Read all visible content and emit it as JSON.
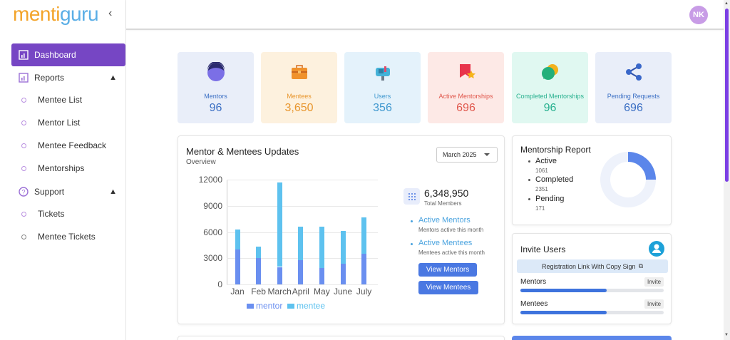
{
  "app": {
    "logo_part1": "menti",
    "logo_part2": "guru",
    "user_initials": "NK"
  },
  "sidebar": {
    "collapse_icon": "chevron-left-icon",
    "items": [
      {
        "label": "Dashboard",
        "icon": "dashboard-icon",
        "active": true
      },
      {
        "label": "Reports",
        "icon": "reports-icon"
      },
      {
        "label": "Mentee List"
      },
      {
        "label": "Mentor List"
      },
      {
        "label": "Mentee Feedback"
      },
      {
        "label": "Mentorships"
      },
      {
        "label": "Support",
        "icon": "help-icon"
      },
      {
        "label": "Tickets"
      },
      {
        "label": "Mentee Tickets"
      }
    ]
  },
  "stats": [
    {
      "label": "Mentors",
      "value": "96",
      "color": "#3b6fc4",
      "bg": "#e9eef9"
    },
    {
      "label": "Mentees",
      "value": "3,650",
      "color": "#e8962d",
      "bg": "#fdf1de"
    },
    {
      "label": "Users",
      "value": "356",
      "color": "#3f98cf",
      "bg": "#e4f2fb"
    },
    {
      "label": "Active Mentorships",
      "value": "696",
      "color": "#e0574c",
      "bg": "#fde9e6"
    },
    {
      "label": "Completed Mentorships",
      "value": "96",
      "color": "#26b08e",
      "bg": "#e0f8f1"
    },
    {
      "label": "Pending Requests",
      "value": "696",
      "color": "#3b6fc4",
      "bg": "#e9eef9"
    }
  ],
  "updates": {
    "title": "Mentor & Mentees Updates",
    "subtitle": "Overview",
    "month_select": "March 2025",
    "total_members": "6,348,950",
    "total_members_label": "Total Members",
    "active_mentors": "Active Mentors",
    "active_mentors_desc": "Mentors active this month",
    "active_mentees": "Active Mentees",
    "active_mentees_desc": "Mentees active this month",
    "view_mentors": "View Mentors",
    "view_mentees": "View Mentees"
  },
  "chart_data": {
    "type": "bar",
    "stacked": true,
    "categories": [
      "Jan",
      "Feb",
      "March",
      "April",
      "May",
      "June",
      "July"
    ],
    "series": [
      {
        "name": "mentor",
        "color": "#6a8ff0",
        "values": [
          4000,
          3000,
          2000,
          2800,
          1900,
          2400,
          3500
        ]
      },
      {
        "name": "mentee",
        "color": "#5ec2ef",
        "values": [
          2300,
          1300,
          9700,
          3800,
          4700,
          3700,
          4200
        ]
      }
    ],
    "yticks": [
      "12000",
      "9000",
      "6000",
      "3000",
      "0"
    ],
    "ylim": [
      0,
      12000
    ],
    "legend": "bottom"
  },
  "report": {
    "title": "Mentorship Report",
    "items": [
      {
        "label": "Active",
        "value": "1061"
      },
      {
        "label": "Completed",
        "value": "2351"
      },
      {
        "label": "Pending",
        "value": "171"
      }
    ],
    "donut_active_color": "#5b86ea",
    "donut_rest_color": "#eef2fb"
  },
  "invite": {
    "title": "Invite Users",
    "reg_link": "Registration Link With Copy Sign",
    "rows": [
      {
        "label": "Mentors",
        "button": "Invite",
        "progress": 0.6
      },
      {
        "label": "Mentees",
        "button": "Invite",
        "progress": 0.6
      }
    ]
  }
}
